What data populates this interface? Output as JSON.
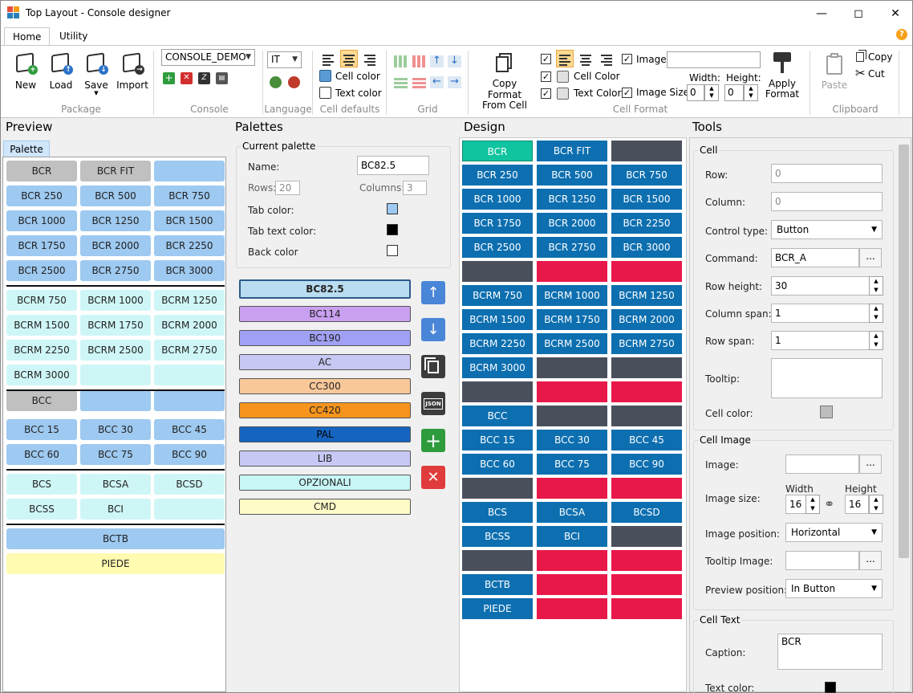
{
  "window": {
    "title": "Top Layout - Console designer"
  },
  "ribbon_tabs": [
    "Home",
    "Utility"
  ],
  "ribbon": {
    "package": {
      "label": "Package",
      "new": "New",
      "load": "Load",
      "save": "Save",
      "import": "Import"
    },
    "console": {
      "label": "Console",
      "selected": "CONSOLE_DEMO"
    },
    "language": {
      "label": "Language",
      "selected": "IT"
    },
    "cell_defaults": {
      "label": "Cell defaults",
      "cell_color": "Cell color",
      "text_color": "Text color"
    },
    "grid": {
      "label": "Grid"
    },
    "cell_format": {
      "label": "Cell Format",
      "copy_format": "Copy Format",
      "from_cell": "From Cell",
      "cell_color": "Cell Color",
      "text_color": "Text Color",
      "image": "Image:",
      "image_size": "Image Size:",
      "width": "Width:",
      "height": "Height:",
      "width_value": "0",
      "height_value": "0",
      "apply": "Apply",
      "format": "Format"
    },
    "clipboard": {
      "label": "Clipboard",
      "paste": "Paste",
      "copy": "Copy",
      "cut": "Cut"
    }
  },
  "panels": {
    "preview": "Preview",
    "palettes": "Palettes",
    "design": "Design",
    "tools": "Tools"
  },
  "preview": {
    "tab": "Palette",
    "rows": [
      [
        "BCR",
        "BCR FIT",
        ""
      ],
      [
        "BCR 250",
        "BCR 500",
        "BCR 750"
      ],
      [
        "BCR 1000",
        "BCR 1250",
        "BCR 1500"
      ],
      [
        "BCR 1750",
        "BCR 2000",
        "BCR 2250"
      ],
      [
        "BCR 2500",
        "BCR 2750",
        "BCR 3000"
      ],
      [
        "BCRM 750",
        "BCRM 1000",
        "BCRM 1250"
      ],
      [
        "BCRM 1500",
        "BCRM 1750",
        "BCRM 2000"
      ],
      [
        "BCRM 2250",
        "BCRM 2500",
        "BCRM 2750"
      ],
      [
        "BCRM 3000",
        "",
        ""
      ],
      [
        "BCC",
        "",
        ""
      ],
      [
        "BCC 15",
        "BCC 30",
        "BCC 45"
      ],
      [
        "BCC 60",
        "BCC 75",
        "BCC 90"
      ],
      [
        "BCS",
        "BCSA",
        "BCSD"
      ],
      [
        "BCSS",
        "BCI",
        ""
      ],
      [
        "BCTB"
      ],
      [
        "PIEDE"
      ]
    ]
  },
  "palettes": {
    "current_palette": "Current palette",
    "name_label": "Name:",
    "name_value": "BC82.5",
    "rows_label": "Rows:",
    "rows_value": "20",
    "columns_label": "Columns:",
    "columns_value": "3",
    "tab_color_label": "Tab color:",
    "tab_text_color_label": "Tab text color:",
    "back_color_label": "Back color",
    "list": [
      "BC82.5",
      "BC114",
      "BC190",
      "AC",
      "CC300",
      "CC420",
      "PAL",
      "LIB",
      "OPZIONALI",
      "CMD"
    ],
    "list_colors": [
      "#b9dcf0",
      "#c9a0f0",
      "#a0a0f5",
      "#c8c8f5",
      "#f8c89a",
      "#f7941d",
      "#1565c0",
      "#c8c8f5",
      "#c8f5f5",
      "#fffbc8"
    ]
  },
  "design": {
    "rows": [
      [
        "BCR",
        "BCR FIT",
        ""
      ],
      [
        "BCR 250",
        "BCR 500",
        "BCR 750"
      ],
      [
        "BCR 1000",
        "BCR 1250",
        "BCR 1500"
      ],
      [
        "BCR 1750",
        "BCR 2000",
        "BCR 2250"
      ],
      [
        "BCR 2500",
        "BCR 2750",
        "BCR 3000"
      ],
      [
        "",
        "",
        ""
      ],
      [
        "BCRM 750",
        "BCRM 1000",
        "BCRM 1250"
      ],
      [
        "BCRM 1500",
        "BCRM 1750",
        "BCRM 2000"
      ],
      [
        "BCRM 2250",
        "BCRM 2500",
        "BCRM 2750"
      ],
      [
        "BCRM 3000",
        "",
        ""
      ],
      [
        "",
        "",
        ""
      ],
      [
        "BCC",
        "",
        ""
      ],
      [
        "BCC 15",
        "BCC 30",
        "BCC 45"
      ],
      [
        "BCC 60",
        "BCC 75",
        "BCC 90"
      ],
      [
        "",
        "",
        ""
      ],
      [
        "BCS",
        "BCSA",
        "BCSD"
      ],
      [
        "BCSS",
        "BCI",
        ""
      ],
      [
        "",
        "",
        ""
      ],
      [
        "BCTB",
        "",
        ""
      ],
      [
        "PIEDE",
        "",
        ""
      ]
    ]
  },
  "tools": {
    "cell": {
      "title": "Cell",
      "row_label": "Row:",
      "row_value": "0",
      "column_label": "Column:",
      "column_value": "0",
      "control_type_label": "Control type:",
      "control_type_value": "Button",
      "command_label": "Command:",
      "command_value": "BCR_A",
      "row_height_label": "Row height:",
      "row_height_value": "30",
      "column_span_label": "Column span:",
      "column_span_value": "1",
      "row_span_label": "Row span:",
      "row_span_value": "1",
      "tooltip_label": "Tooltip:",
      "cell_color_label": "Cell color:"
    },
    "cell_image": {
      "title": "Cell Image",
      "image_label": "Image:",
      "image_size_label": "Image size:",
      "width_label": "Width",
      "height_label": "Height",
      "width_value": "16",
      "height_value": "16",
      "image_position_label": "Image position:",
      "image_position_value": "Horizontal",
      "tooltip_image_label": "Tooltip Image:",
      "preview_position_label": "Preview position:",
      "preview_position_value": "In Button"
    },
    "cell_text": {
      "title": "Cell Text",
      "caption_label": "Caption:",
      "caption_value": "BCR",
      "text_color_label": "Text color:"
    }
  }
}
